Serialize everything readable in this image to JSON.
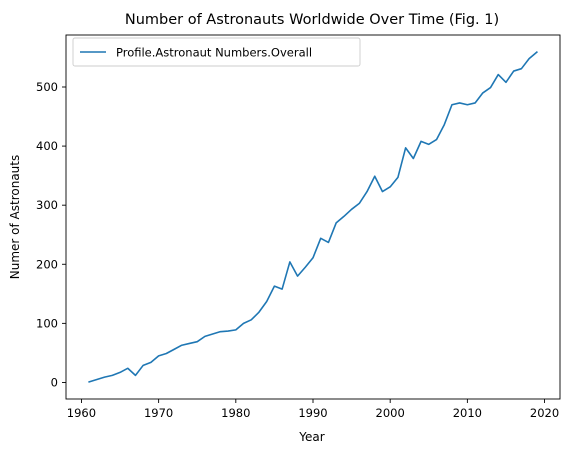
{
  "chart_data": {
    "type": "line",
    "title": "Number of Astronauts Worldwide Over Time (Fig. 1)",
    "xlabel": "Year",
    "ylabel": "Numer of Astronauts",
    "xlim": [
      1958,
      2022
    ],
    "ylim": [
      -28,
      588
    ],
    "xticks": [
      1960,
      1970,
      1980,
      1990,
      2000,
      2010,
      2020
    ],
    "yticks": [
      0,
      100,
      200,
      300,
      400,
      500
    ],
    "grid": false,
    "legend_position": "top-left",
    "series": [
      {
        "name": "Profile.Astronaut Numbers.Overall",
        "color": "#1f77b4",
        "x": [
          1961,
          1962,
          1963,
          1964,
          1965,
          1966,
          1967,
          1968,
          1969,
          1970,
          1971,
          1972,
          1973,
          1974,
          1975,
          1976,
          1977,
          1978,
          1979,
          1980,
          1981,
          1982,
          1983,
          1984,
          1985,
          1986,
          1987,
          1988,
          1989,
          1990,
          1991,
          1992,
          1993,
          1994,
          1995,
          1996,
          1997,
          1998,
          1999,
          2000,
          2001,
          2002,
          2003,
          2004,
          2005,
          2006,
          2007,
          2008,
          2009,
          2010,
          2011,
          2012,
          2013,
          2014,
          2015,
          2016,
          2017,
          2018,
          2019
        ],
        "values": [
          1,
          5,
          9,
          12,
          17,
          24,
          12,
          29,
          34,
          45,
          49,
          56,
          63,
          66,
          69,
          78,
          82,
          86,
          87,
          89,
          100,
          106,
          119,
          137,
          163,
          158,
          204,
          180,
          195,
          211,
          244,
          237,
          270,
          281,
          293,
          303,
          323,
          349,
          323,
          331,
          347,
          397,
          379,
          408,
          403,
          411,
          436,
          470,
          473,
          470,
          473,
          490,
          499,
          521,
          508,
          527,
          531,
          548,
          559
        ]
      }
    ]
  }
}
